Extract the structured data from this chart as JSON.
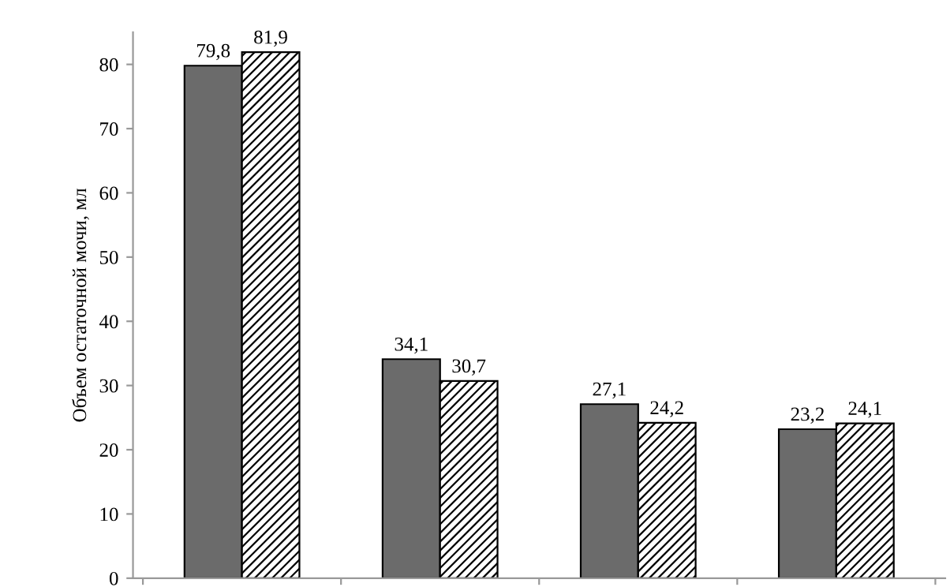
{
  "chart_data": {
    "type": "bar",
    "ylabel": "Объем остаточной мочи, мл",
    "categories": [
      null,
      null,
      null,
      null
    ],
    "series": [
      {
        "color": "#6b6b6b",
        "values": [
          79.8,
          34.1,
          27.1,
          23.2
        ],
        "value_labels": [
          "79,8",
          "34,1",
          "27,1",
          "23,2"
        ]
      },
      {
        "color": "#000000",
        "values": [
          81.9,
          30.7,
          24.2,
          24.1
        ],
        "value_labels": [
          "81,9",
          "30,7",
          "24,2",
          "24,1"
        ]
      }
    ],
    "ylim": [
      0,
      85
    ],
    "yticks": [
      0,
      10,
      20,
      30,
      40,
      50,
      60,
      70,
      80
    ],
    "grid": false,
    "legend": false
  }
}
